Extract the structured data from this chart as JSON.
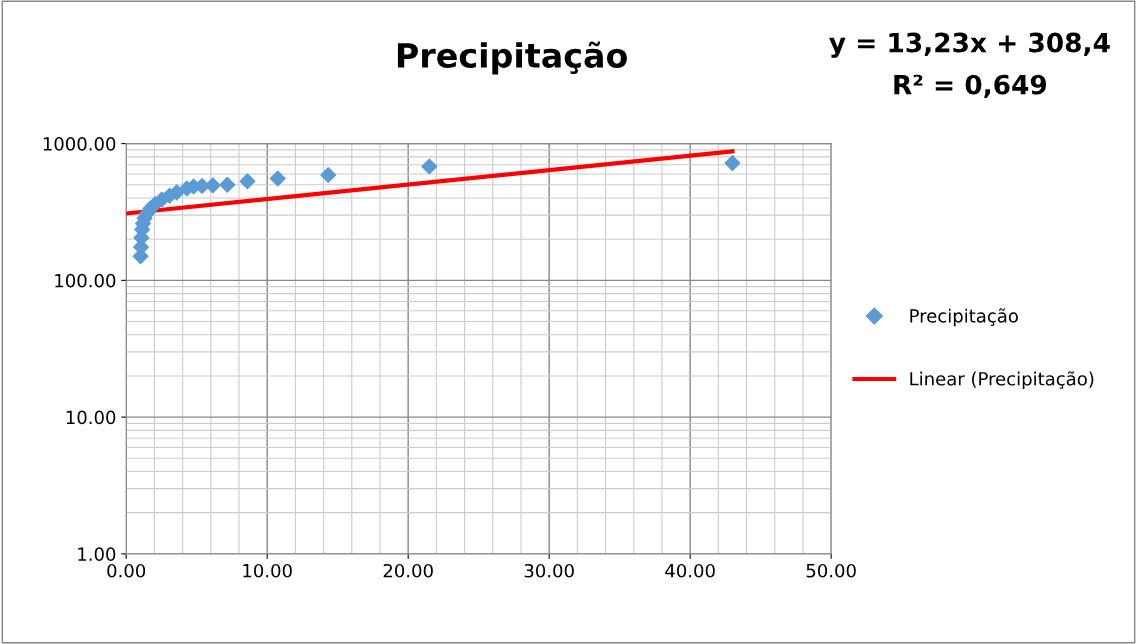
{
  "chart_data": {
    "type": "scatter",
    "title": "Precipitação",
    "annotations": [
      "y = 13,23x + 308,4",
      "R² = 0,649"
    ],
    "series": [
      {
        "name": "Precipitação",
        "color": "#5b9bd5",
        "marker": "diamond",
        "x": [
          43,
          21.5,
          14.33,
          10.75,
          8.6,
          7.17,
          6.14,
          5.38,
          4.78,
          4.3,
          3.58,
          3.07,
          2.53,
          2.05,
          1.72,
          1.48,
          1.3,
          1.19,
          1.13,
          1.08,
          1.05,
          1.02
        ],
        "values": [
          720,
          680,
          590,
          555,
          530,
          500,
          495,
          490,
          485,
          470,
          440,
          415,
          390,
          360,
          335,
          310,
          285,
          260,
          235,
          205,
          175,
          150
        ]
      },
      {
        "name": "Linear (Precipitação)",
        "type": "line",
        "color": "#ff0000",
        "line_style": "solid",
        "x": [
          0,
          43
        ],
        "values": [
          308.4,
          877.29
        ]
      }
    ],
    "log": "y",
    "xlim": [
      0,
      50
    ],
    "xticks": [
      {
        "value": 0,
        "label": "0.00"
      },
      {
        "value": 10,
        "label": "10.00"
      },
      {
        "value": 20,
        "label": "20.00"
      },
      {
        "value": 30,
        "label": "30.00"
      },
      {
        "value": 40,
        "label": "40.00"
      },
      {
        "value": 50,
        "label": "50.00"
      }
    ],
    "ylim": [
      1,
      1000
    ],
    "yticks": [
      {
        "value": 1,
        "label": "1.00"
      },
      {
        "value": 10,
        "label": "10.00"
      },
      {
        "value": 100,
        "label": "100.00"
      },
      {
        "value": 1000,
        "label": "1000.00"
      }
    ],
    "grid": true,
    "legend": "right"
  }
}
